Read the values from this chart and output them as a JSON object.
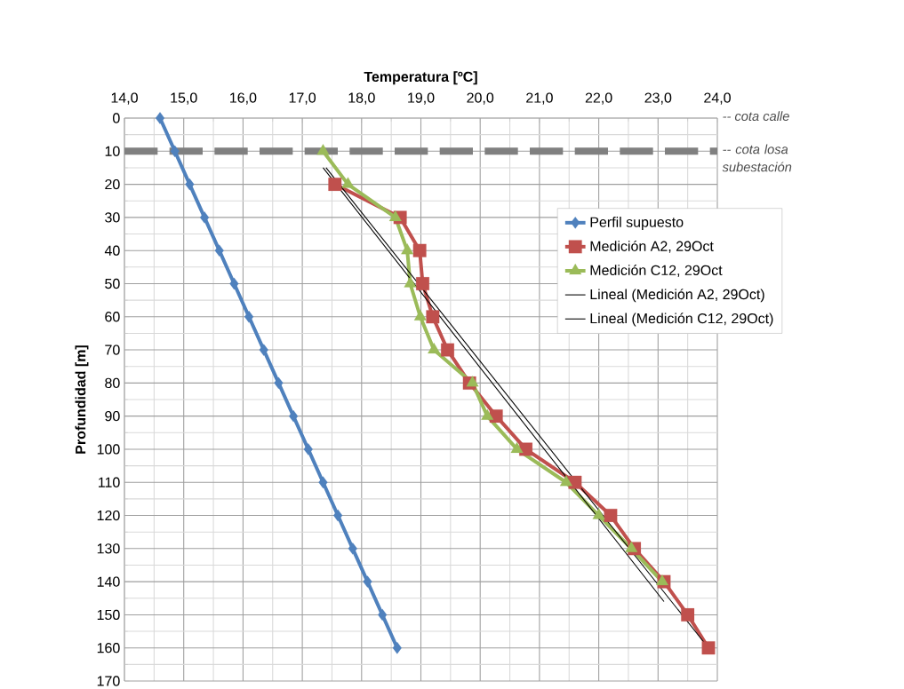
{
  "chart_data": {
    "type": "line",
    "xlabel": "Temperatura [ºC]",
    "ylabel": "Profundidad [m]",
    "xlim": [
      14,
      24
    ],
    "xticks": [
      {
        "value": 14,
        "label": "14,0"
      },
      {
        "value": 15,
        "label": "15,0"
      },
      {
        "value": 16,
        "label": "16,0"
      },
      {
        "value": 17,
        "label": "17,0"
      },
      {
        "value": 18,
        "label": "18,0"
      },
      {
        "value": 19,
        "label": "19,0"
      },
      {
        "value": 20,
        "label": "20,0"
      },
      {
        "value": 21,
        "label": "21,0"
      },
      {
        "value": 22,
        "label": "22,0"
      },
      {
        "value": 23,
        "label": "23,0"
      },
      {
        "value": 24,
        "label": "24,0"
      }
    ],
    "ylim": [
      170,
      0
    ],
    "yticks": [
      0,
      10,
      20,
      30,
      40,
      50,
      60,
      70,
      80,
      90,
      100,
      110,
      120,
      130,
      140,
      150,
      160,
      170
    ],
    "grid": true,
    "legend": "top right",
    "line_style": "solid",
    "series": [
      {
        "name": "Perfil supuesto",
        "color": "#4f81bd",
        "marker": "diamond",
        "x": [
          14.6,
          14.85,
          15.1,
          15.35,
          15.6,
          15.85,
          16.1,
          16.35,
          16.6,
          16.85,
          17.1,
          17.35,
          17.6,
          17.85,
          18.1,
          18.35,
          18.6
        ],
        "values": [
          0,
          10,
          20,
          30,
          40,
          50,
          60,
          70,
          80,
          90,
          100,
          110,
          120,
          130,
          140,
          150,
          160
        ]
      },
      {
        "name": "Medición A2, 29Oct",
        "color": "#c0504d",
        "marker": "square",
        "x": [
          17.55,
          18.65,
          18.98,
          19.03,
          19.2,
          19.45,
          19.82,
          20.27,
          20.77,
          21.6,
          22.2,
          22.6,
          23.1,
          23.5,
          23.85
        ],
        "values": [
          20,
          30,
          40,
          50,
          60,
          70,
          80,
          90,
          100,
          110,
          120,
          130,
          140,
          150,
          160
        ]
      },
      {
        "name": "Medición C12, 29Oct",
        "color": "#9bbb59",
        "marker": "triangle",
        "x": [
          17.35,
          17.77,
          18.57,
          18.77,
          18.82,
          18.99,
          19.22,
          19.87,
          20.12,
          20.62,
          21.45,
          22.0,
          22.55,
          23.07
        ],
        "values": [
          10,
          20,
          30,
          40,
          50,
          60,
          70,
          80,
          90,
          100,
          110,
          120,
          130,
          140
        ]
      },
      {
        "name": "Lineal (Medición A2, 29Oct)",
        "color": "#000000",
        "marker": "none",
        "x": [
          17.4,
          23.85
        ],
        "values": [
          15,
          160
        ]
      },
      {
        "name": "Lineal (Medición C12, 29Oct)",
        "color": "#000000",
        "marker": "none",
        "x": [
          17.35,
          23.1
        ],
        "values": [
          15,
          146
        ]
      }
    ],
    "ref_lines": [
      {
        "axis": "y",
        "value": 10,
        "label": "-- cota losa subestación",
        "color": "#808080",
        "line_style": "dashed"
      }
    ],
    "annotations": [
      "-- cota  calle"
    ]
  }
}
